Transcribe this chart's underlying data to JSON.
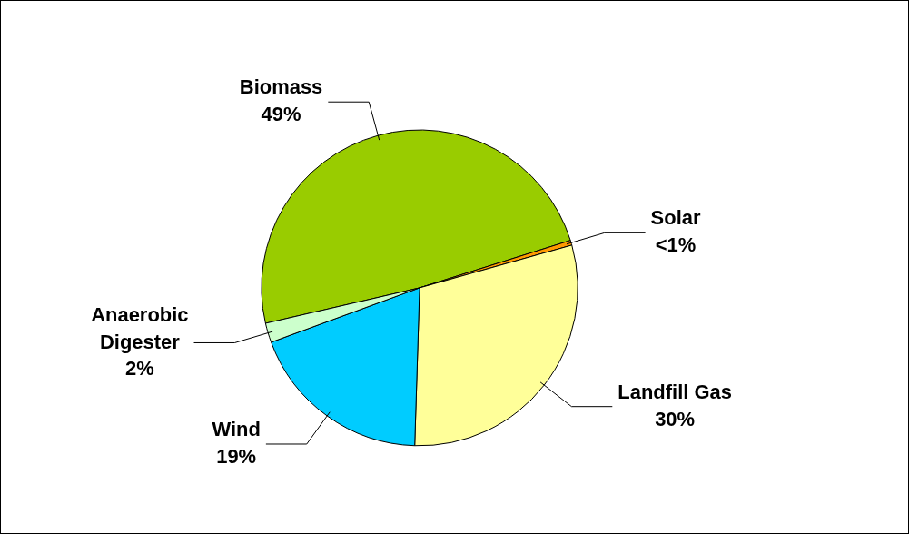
{
  "chart_data": {
    "type": "pie",
    "categories": [
      "Biomass",
      "Solar",
      "Landfill Gas",
      "Wind",
      "Anaerobic Digester"
    ],
    "values": [
      49,
      0.5,
      30,
      19,
      2
    ],
    "value_labels": [
      "49%",
      "<1%",
      "30%",
      "19%",
      "2%"
    ],
    "colors": [
      "#99cc00",
      "#ff9900",
      "#ffff99",
      "#00ccff",
      "#ccffcc"
    ],
    "legend": false
  }
}
